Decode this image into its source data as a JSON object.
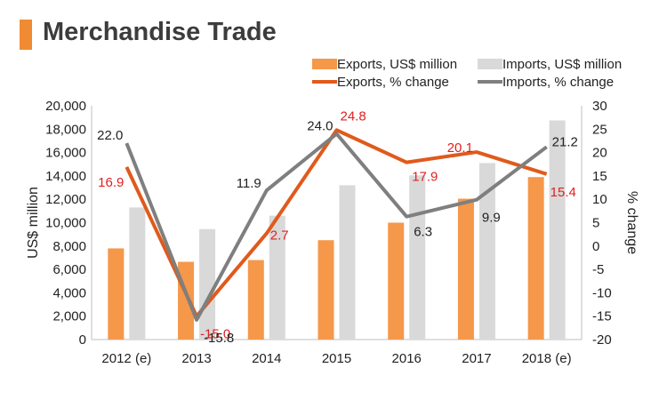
{
  "page": {
    "title": "Merchandise Trade",
    "accent_color": "#f08b34"
  },
  "chart_data": {
    "type": "bar",
    "categories": [
      "2012 (e)",
      "2013",
      "2014",
      "2015",
      "2016",
      "2017",
      "2018 (e)"
    ],
    "series": [
      {
        "name": "Exports, US$ million",
        "kind": "bar",
        "axis": "left",
        "color": "#f5984a",
        "values": [
          7800,
          6650,
          6800,
          8500,
          10000,
          12050,
          13900
        ]
      },
      {
        "name": "Imports, US$ million",
        "kind": "bar",
        "axis": "left",
        "color": "#d9d9d9",
        "values": [
          11300,
          9450,
          10600,
          13200,
          14050,
          15100,
          18750
        ]
      },
      {
        "name": "Exports, % change",
        "kind": "line",
        "axis": "right",
        "color": "#e05a1c",
        "label_color": "#e02020",
        "values": [
          16.9,
          -15.0,
          2.7,
          24.8,
          17.9,
          20.1,
          15.4
        ],
        "labels": [
          "16.9",
          "-15.0",
          "2.7",
          "24.8",
          "17.9",
          "20.1",
          "15.4"
        ]
      },
      {
        "name": "Imports, % change",
        "kind": "line",
        "axis": "right",
        "color": "#7f7f7f",
        "label_color": "#222222",
        "values": [
          22.0,
          -15.8,
          11.9,
          24.0,
          6.3,
          9.9,
          21.2
        ],
        "labels": [
          "22.0",
          "-15.8",
          "11.9",
          "24.0",
          "6.3",
          "9.9",
          "21.2"
        ]
      }
    ],
    "ylabel": "US$ million",
    "y2label": "% change",
    "ylim": [
      0,
      20000
    ],
    "y2lim": [
      -20,
      30
    ],
    "yticks": [
      "0",
      "2,000",
      "4,000",
      "6,000",
      "8,000",
      "10,000",
      "12,000",
      "14,000",
      "16,000",
      "18,000",
      "20,000"
    ],
    "y2ticks": [
      "-20",
      "-15",
      "-10",
      "-5",
      "0",
      "5",
      "10",
      "15",
      "20",
      "25",
      "30"
    ],
    "grid": false,
    "legend_position": "top-right"
  }
}
